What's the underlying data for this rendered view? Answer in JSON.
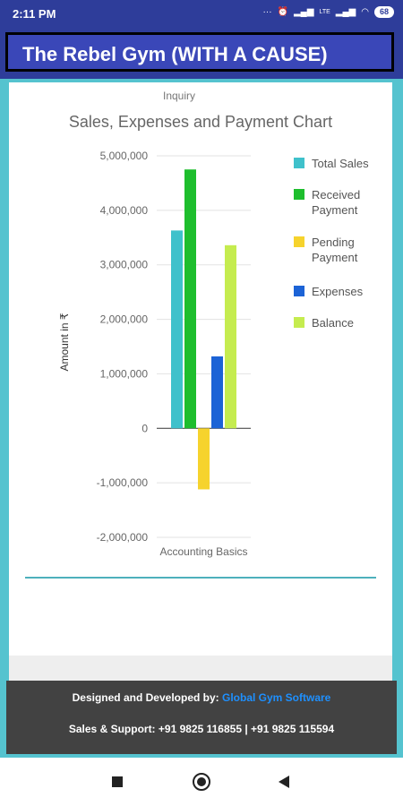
{
  "status_bar": {
    "time": "2:11 PM",
    "icons": [
      "more-icon",
      "alarm-icon",
      "signal-icon",
      "lte-icon",
      "signal-icon",
      "wifi-icon"
    ],
    "battery": "68"
  },
  "header": {
    "title": "The Rebel Gym (WITH A CAUSE)"
  },
  "content": {
    "partial_label": "Inquiry"
  },
  "chart_data": {
    "type": "bar",
    "title": "Sales, Expenses and Payment Chart",
    "ylabel": "Amount in ₹",
    "xlabel": "",
    "categories": [
      "Accounting Basics"
    ],
    "ylim": [
      -2000000,
      5000000
    ],
    "yticks": [
      5000000,
      4000000,
      3000000,
      2000000,
      1000000,
      0,
      -1000000,
      -2000000
    ],
    "ytick_labels": [
      "5,000,000",
      "4,000,000",
      "3,000,000",
      "2,000,000",
      "1,000,000",
      "0",
      "-1,000,000",
      "-2,000,000"
    ],
    "grid": true,
    "legend_position": "right",
    "series": [
      {
        "name": "Total Sales",
        "values": [
          3630000
        ],
        "color": "#3fc1cb"
      },
      {
        "name": "Received Payment",
        "values": [
          4750000
        ],
        "color": "#1ebe2d"
      },
      {
        "name": "Pending Payment",
        "values": [
          -1120000
        ],
        "color": "#f6d32d"
      },
      {
        "name": "Expenses",
        "values": [
          1320000
        ],
        "color": "#1c63d6"
      },
      {
        "name": "Balance",
        "values": [
          3360000
        ],
        "color": "#c5ec4f"
      }
    ],
    "legend_labels": [
      [
        "Total Sales"
      ],
      [
        "Received",
        "Payment"
      ],
      [
        "Pending",
        "Payment"
      ],
      [
        "Expenses"
      ],
      [
        "Balance"
      ]
    ]
  },
  "footer": {
    "designed_by_label": "Designed and Developed by: ",
    "designed_by_link": "Global Gym Software",
    "support": "Sales & Support: +91 9825 116855 | +91 9825 115594"
  },
  "nav": {
    "recents_icon": "square-icon",
    "home_icon": "circle-icon",
    "back_icon": "triangle-back-icon"
  }
}
